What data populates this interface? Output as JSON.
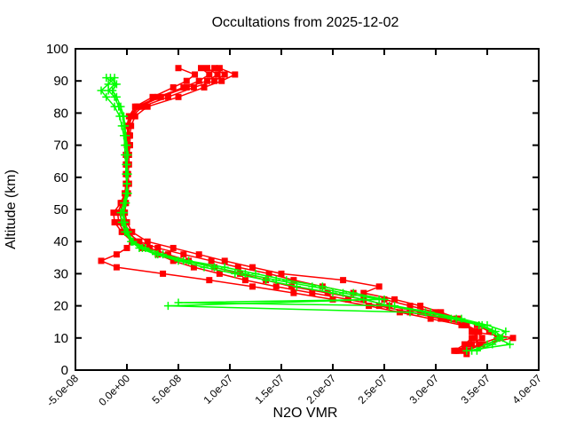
{
  "window": {
    "background_color": "#ffffff",
    "foreground_color": "#000000"
  },
  "chart_data": {
    "type": "line",
    "title": "Occultations from 2025-12-02",
    "xlabel": "N2O VMR",
    "ylabel": "Altitude (km)",
    "legend": "none",
    "grid": false,
    "x_value_scale": "vmr values stored in units of 1e-7",
    "xlim": [
      -0.5,
      4.0
    ],
    "ylim": [
      0,
      100
    ],
    "x_ticks": {
      "values": [
        -0.5,
        0.0,
        0.5,
        1.0,
        1.5,
        2.0,
        2.5,
        3.0,
        3.5,
        4.0
      ],
      "labels": [
        "-5.0e-08",
        "0.0e+00",
        "5.0e-08",
        "1.0e-07",
        "1.5e-07",
        "2.0e-07",
        "2.5e-07",
        "3.0e-07",
        "3.5e-07",
        "4.0e-07"
      ]
    },
    "y_ticks": {
      "values": [
        0,
        10,
        20,
        30,
        40,
        50,
        60,
        70,
        80,
        90,
        100
      ],
      "labels": [
        "0",
        "10",
        "20",
        "30",
        "40",
        "50",
        "60",
        "70",
        "80",
        "90",
        "100"
      ]
    },
    "colors": {
      "red_series": "#ff0000",
      "green_series": "#00ff00"
    },
    "markers": {
      "red_series": "square",
      "green_series": "plus"
    },
    "series": [
      {
        "name": "occultation-red-1",
        "color": "#ff0000",
        "marker": "square",
        "alt_km": [
          6,
          8,
          10,
          12,
          14,
          16,
          18,
          20,
          22,
          24,
          26,
          28,
          30,
          32,
          34,
          36,
          38,
          40,
          43,
          46,
          49,
          52,
          55,
          58,
          61,
          64,
          67,
          70,
          73,
          76,
          79,
          82,
          85,
          88,
          90,
          92,
          94
        ],
        "vmr": [
          3.2,
          3.35,
          3.45,
          3.4,
          3.28,
          3.1,
          2.85,
          2.55,
          2.3,
          1.95,
          1.6,
          1.35,
          1.1,
          0.85,
          0.6,
          0.4,
          0.22,
          0.1,
          0.02,
          -0.02,
          -0.03,
          -0.02,
          0,
          0.01,
          0,
          -0.01,
          0,
          0.01,
          0.02,
          0.01,
          0.03,
          0.1,
          0.3,
          0.55,
          0.7,
          0.8,
          0.72
        ]
      },
      {
        "name": "occultation-red-2",
        "color": "#ff0000",
        "marker": "square",
        "alt_km": [
          6,
          8,
          10,
          12,
          14,
          16,
          18,
          20,
          22,
          24,
          26,
          28,
          30,
          32,
          34,
          36,
          38,
          40,
          43,
          46,
          49,
          52,
          55,
          58,
          61,
          64,
          67,
          70,
          73,
          76,
          79,
          82,
          85,
          88,
          90,
          92,
          94
        ],
        "vmr": [
          3.3,
          3.45,
          3.75,
          3.35,
          3.3,
          3.2,
          3.0,
          2.75,
          2.5,
          2.2,
          1.9,
          1.62,
          1.38,
          1.08,
          0.82,
          0.55,
          0.3,
          0.12,
          0,
          -0.05,
          -0.07,
          -0.04,
          -0.01,
          0,
          0.01,
          0,
          0.01,
          0.02,
          0.01,
          0.02,
          0.05,
          0.15,
          0.4,
          0.65,
          0.85,
          0.95,
          0.85
        ]
      },
      {
        "name": "occultation-red-3",
        "color": "#ff0000",
        "marker": "square",
        "alt_km": [
          5,
          6,
          8,
          10,
          12,
          14,
          16,
          18,
          20,
          22,
          24,
          26,
          28,
          30,
          32,
          34,
          36,
          38,
          40,
          43,
          46,
          49,
          52,
          55,
          58,
          61,
          64,
          67,
          70,
          73,
          76,
          79,
          82,
          85,
          88,
          90,
          92,
          94
        ],
        "vmr": [
          3.3,
          3.22,
          3.3,
          3.38,
          3.42,
          3.25,
          2.95,
          2.65,
          2.35,
          2.0,
          1.62,
          1.22,
          0.8,
          0.35,
          -0.1,
          -0.25,
          -0.1,
          0,
          0.05,
          -0.05,
          -0.12,
          -0.13,
          -0.06,
          -0.02,
          -0.01,
          0,
          0,
          -0.01,
          0,
          0.01,
          0,
          0.02,
          0.08,
          0.25,
          0.45,
          0.58,
          0.66,
          0.5
        ]
      },
      {
        "name": "occultation-red-4",
        "color": "#ff0000",
        "marker": "square",
        "alt_km": [
          6,
          8,
          10,
          12,
          14,
          16,
          18,
          20,
          22,
          24,
          26,
          28,
          30,
          32,
          34,
          36,
          38,
          40,
          43,
          46,
          49,
          52,
          55,
          58,
          61,
          64,
          67,
          70,
          73,
          76,
          79,
          82,
          85,
          88,
          90,
          92,
          94
        ],
        "vmr": [
          3.28,
          3.42,
          3.6,
          3.52,
          3.4,
          3.22,
          3.05,
          2.85,
          2.6,
          2.3,
          2.45,
          2.1,
          1.5,
          1.22,
          0.95,
          0.7,
          0.45,
          0.2,
          0.05,
          0,
          -0.02,
          -0.01,
          0.01,
          0.02,
          0.01,
          0.02,
          0.02,
          0.03,
          0.03,
          0.04,
          0.08,
          0.2,
          0.5,
          0.75,
          0.92,
          1.05,
          0.9
        ]
      },
      {
        "name": "occultation-red-5",
        "color": "#ff0000",
        "marker": "square",
        "alt_km": [
          6,
          8,
          10,
          12,
          14,
          16,
          18,
          20,
          22,
          24,
          26,
          28,
          30,
          32,
          34,
          36,
          38,
          40,
          43,
          46,
          49,
          52,
          55,
          58,
          61,
          64,
          67,
          70,
          73,
          76,
          79,
          82,
          85,
          88,
          90,
          92,
          94
        ],
        "vmr": [
          3.18,
          3.28,
          3.35,
          3.42,
          3.3,
          3.05,
          2.75,
          2.45,
          2.15,
          1.8,
          1.45,
          1.15,
          0.9,
          0.65,
          0.45,
          0.3,
          0.15,
          0.05,
          -0.03,
          -0.08,
          -0.09,
          -0.05,
          -0.02,
          0,
          -0.01,
          0,
          0,
          0.01,
          0.02,
          0.02,
          0.04,
          0.12,
          0.33,
          0.58,
          0.78,
          0.88,
          0.78
        ]
      },
      {
        "name": "occultation-green-1",
        "color": "#00ff00",
        "marker": "plus",
        "alt_km": [
          6,
          8,
          10,
          12,
          14,
          16,
          18,
          20,
          22,
          24,
          26,
          28,
          30,
          32,
          34,
          36,
          38,
          40,
          43,
          46,
          49,
          52,
          55,
          58,
          61,
          64,
          67,
          70,
          73,
          76,
          79,
          82,
          85,
          87,
          89,
          91
        ],
        "vmr": [
          3.35,
          3.5,
          3.62,
          3.55,
          3.42,
          3.15,
          2.75,
          0.4,
          2.45,
          2.1,
          1.8,
          1.45,
          1.15,
          0.85,
          0.55,
          0.3,
          0.15,
          0.05,
          0,
          -0.03,
          -0.04,
          -0.02,
          0,
          0,
          0,
          0,
          0,
          -0.01,
          -0.02,
          -0.03,
          -0.04,
          -0.08,
          -0.12,
          -0.18,
          -0.12,
          -0.2
        ]
      },
      {
        "name": "occultation-green-2",
        "color": "#00ff00",
        "marker": "plus",
        "alt_km": [
          6,
          8,
          10,
          12,
          14,
          16,
          18,
          20,
          21,
          22,
          24,
          26,
          28,
          30,
          32,
          34,
          36,
          38,
          40,
          43,
          46,
          49,
          52,
          55,
          58,
          61,
          64,
          67,
          70,
          73,
          76,
          79,
          82,
          85,
          87,
          89,
          91
        ],
        "vmr": [
          3.3,
          3.72,
          3.6,
          3.68,
          3.5,
          3.25,
          2.95,
          2.6,
          0.5,
          2.5,
          2.2,
          1.9,
          1.55,
          1.25,
          0.95,
          0.6,
          0.35,
          0.18,
          0.06,
          0.01,
          -0.02,
          -0.03,
          -0.01,
          0.01,
          0,
          0.01,
          0,
          0.01,
          0,
          -0.01,
          -0.02,
          -0.03,
          -0.06,
          -0.1,
          -0.14,
          -0.1,
          -0.16
        ]
      },
      {
        "name": "occultation-green-3",
        "color": "#00ff00",
        "marker": "plus",
        "alt_km": [
          6,
          8,
          10,
          12,
          14,
          16,
          18,
          20,
          22,
          24,
          26,
          28,
          30,
          32,
          34,
          36,
          38,
          40,
          43,
          46,
          49,
          52,
          55,
          58,
          61,
          64,
          67,
          70,
          73,
          76,
          79,
          82,
          85,
          87,
          89,
          91
        ],
        "vmr": [
          3.4,
          3.55,
          3.65,
          3.58,
          3.45,
          3.2,
          2.9,
          2.55,
          2.3,
          2.0,
          1.65,
          1.35,
          1.05,
          0.75,
          0.5,
          0.28,
          0.12,
          0.04,
          -0.02,
          -0.05,
          -0.06,
          -0.03,
          -0.01,
          0,
          -0.01,
          -0.01,
          -0.02,
          -0.02,
          -0.03,
          -0.05,
          -0.07,
          -0.12,
          -0.2,
          -0.25,
          -0.18,
          -0.12
        ]
      }
    ]
  }
}
